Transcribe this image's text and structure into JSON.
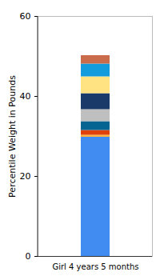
{
  "chart_data": {
    "type": "bar",
    "stacked": true,
    "grid": false,
    "y_label": "Percentile Weight in Pounds",
    "categories": [
      "Girl 4 years 5 months"
    ],
    "series": [
      {
        "color": "#418CF0",
        "values": [
          29.8
        ]
      },
      {
        "color": "#FCB441",
        "values": [
          0.5
        ]
      },
      {
        "color": "#E0400A",
        "values": [
          1.2
        ]
      },
      {
        "color": "#056492",
        "values": [
          2.2
        ]
      },
      {
        "color": "#BFBFBF",
        "values": [
          3.0
        ]
      },
      {
        "color": "#1A3B69",
        "values": [
          4.0
        ]
      },
      {
        "color": "#FFE382",
        "values": [
          4.2
        ]
      },
      {
        "color": "#129CDD",
        "values": [
          3.2
        ]
      },
      {
        "color": "#CA6B4B",
        "values": [
          2.1
        ]
      }
    ],
    "ylim": [
      0,
      60
    ],
    "yticks": [
      0,
      20,
      40,
      60
    ]
  }
}
